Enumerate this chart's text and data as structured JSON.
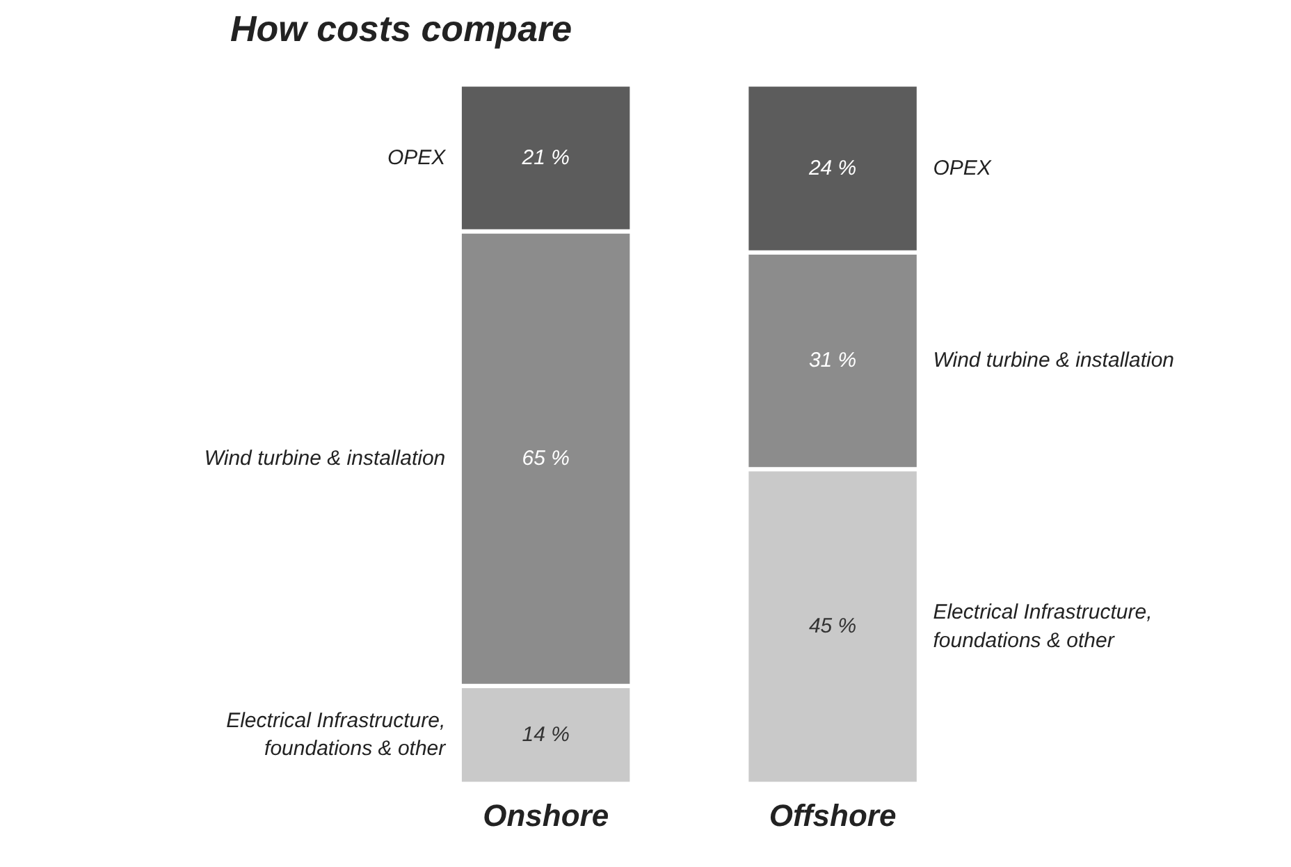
{
  "chart_data": {
    "type": "bar",
    "title": "How costs compare",
    "stacked": true,
    "categories": [
      "Onshore",
      "Offshore"
    ],
    "series": [
      {
        "name": "Electrical Infrastructure, foundations & other",
        "color": "#c9c9c9",
        "values": [
          14,
          45
        ],
        "value_labels": [
          "14 %",
          "45 %"
        ]
      },
      {
        "name": "Wind turbine & installation",
        "color": "#8c8c8c",
        "values": [
          65,
          31
        ],
        "value_labels": [
          "65 %",
          "31 %"
        ]
      },
      {
        "name": "OPEX",
        "color": "#5c5c5c",
        "values": [
          21,
          24
        ],
        "value_labels": [
          "21 %",
          "24 %"
        ]
      }
    ],
    "grid": false
  }
}
